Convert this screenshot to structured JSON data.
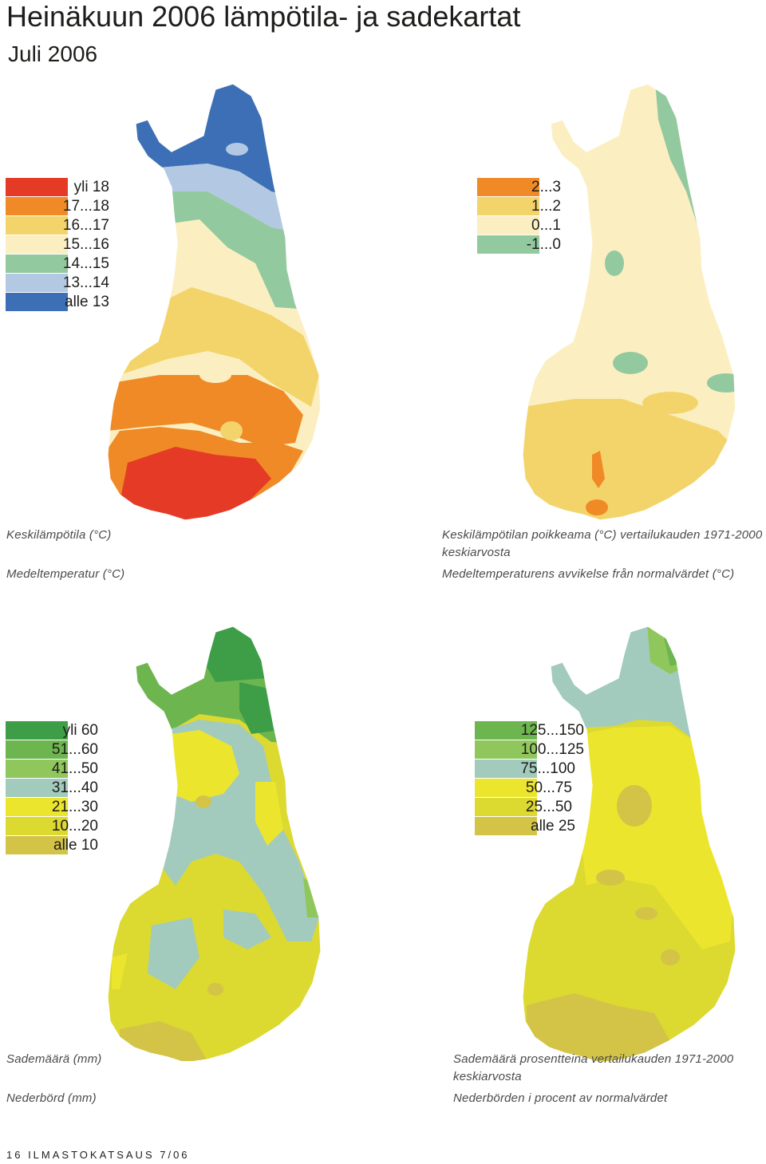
{
  "page": {
    "title": "Heinäkuun 2006 lämpötila- ja sadekartat",
    "subtitle": "Juli 2006",
    "footer": "16  ILMASTOKATSAUS 7/06"
  },
  "maps": [
    {
      "id": "mean-temperature",
      "legend": [
        {
          "label": "yli 18",
          "color": "#e53a26"
        },
        {
          "label": "17...18",
          "color": "#ef8a26"
        },
        {
          "label": "16...17",
          "color": "#f3d46a"
        },
        {
          "label": "15...16",
          "color": "#fbefc2"
        },
        {
          "label": "14...15",
          "color": "#93c99f"
        },
        {
          "label": "13...14",
          "color": "#b3c9e3"
        },
        {
          "label": "alle 13",
          "color": "#3d6fb6"
        }
      ],
      "caption_fi": "Keskilämpötila (°C)",
      "caption_sv": "Medeltemperatur (°C)"
    },
    {
      "id": "temperature-anomaly",
      "legend": [
        {
          "label": "2...3",
          "color": "#ef8a26"
        },
        {
          "label": "1...2",
          "color": "#f3d46a"
        },
        {
          "label": "0...1",
          "color": "#fbefc2"
        },
        {
          "label": "-1...0",
          "color": "#93c99f"
        }
      ],
      "caption_fi": "Keskilämpötilan poikkeama (°C) vertailukauden 1971-2000",
      "caption_fi2": "keskiarvosta",
      "caption_sv": "Medeltemperaturens avvikelse från normalvärdet (°C)"
    },
    {
      "id": "precipitation",
      "legend": [
        {
          "label": "yli 60",
          "color": "#3e9e47"
        },
        {
          "label": "51...60",
          "color": "#6db54f"
        },
        {
          "label": "41...50",
          "color": "#90c75c"
        },
        {
          "label": "31...40",
          "color": "#a2cbbd"
        },
        {
          "label": "21...30",
          "color": "#ece52e"
        },
        {
          "label": "10...20",
          "color": "#dcd930"
        },
        {
          "label": "alle 10",
          "color": "#d3c447"
        }
      ],
      "caption_fi": "Sademäärä (mm)",
      "caption_sv": "Nederbörd (mm)"
    },
    {
      "id": "precipitation-percent",
      "legend": [
        {
          "label": "125...150",
          "color": "#6db54f"
        },
        {
          "label": "100...125",
          "color": "#90c75c"
        },
        {
          "label": "75...100",
          "color": "#a2cbbd"
        },
        {
          "label": "50...75",
          "color": "#ece52e"
        },
        {
          "label": "25...50",
          "color": "#dcd930"
        },
        {
          "label": "alle 25",
          "color": "#d3c447"
        }
      ],
      "caption_fi": "Sademäärä prosentteina vertailukauden 1971-2000",
      "caption_fi2": "keskiarvosta",
      "caption_sv": "Nederbörden i procent av normalvärdet"
    }
  ]
}
